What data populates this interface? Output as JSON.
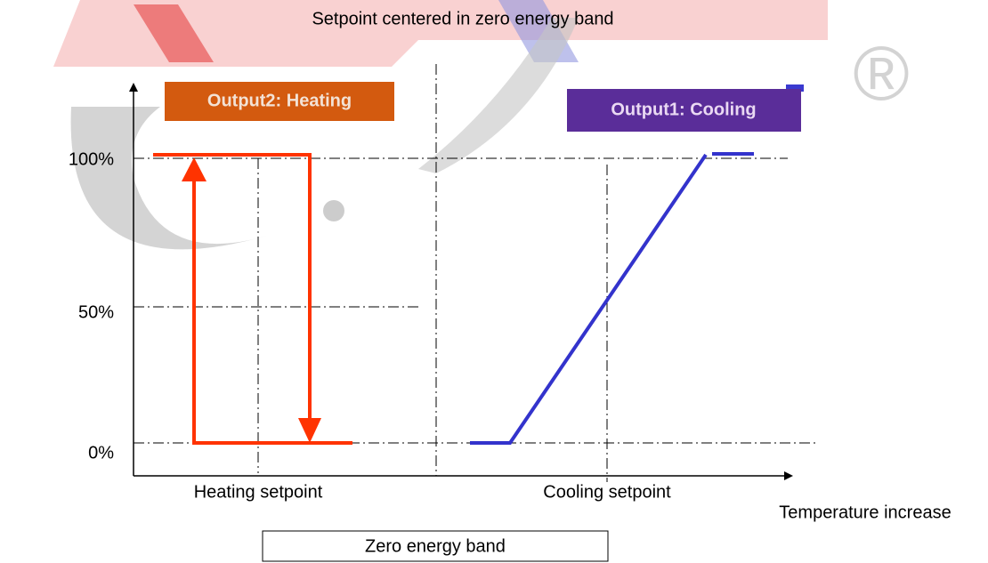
{
  "title": "Setpoint centered in zero energy band",
  "outputs": {
    "heating": "Output2: Heating",
    "cooling": "Output1: Cooling"
  },
  "y_labels": [
    "100%",
    "50%",
    "0%"
  ],
  "x_labels": {
    "heating_setpoint": "Heating setpoint",
    "cooling_setpoint": "Cooling setpoint",
    "axis": "Temperature increase"
  },
  "band_label": "Zero energy band",
  "watermark": "®"
}
